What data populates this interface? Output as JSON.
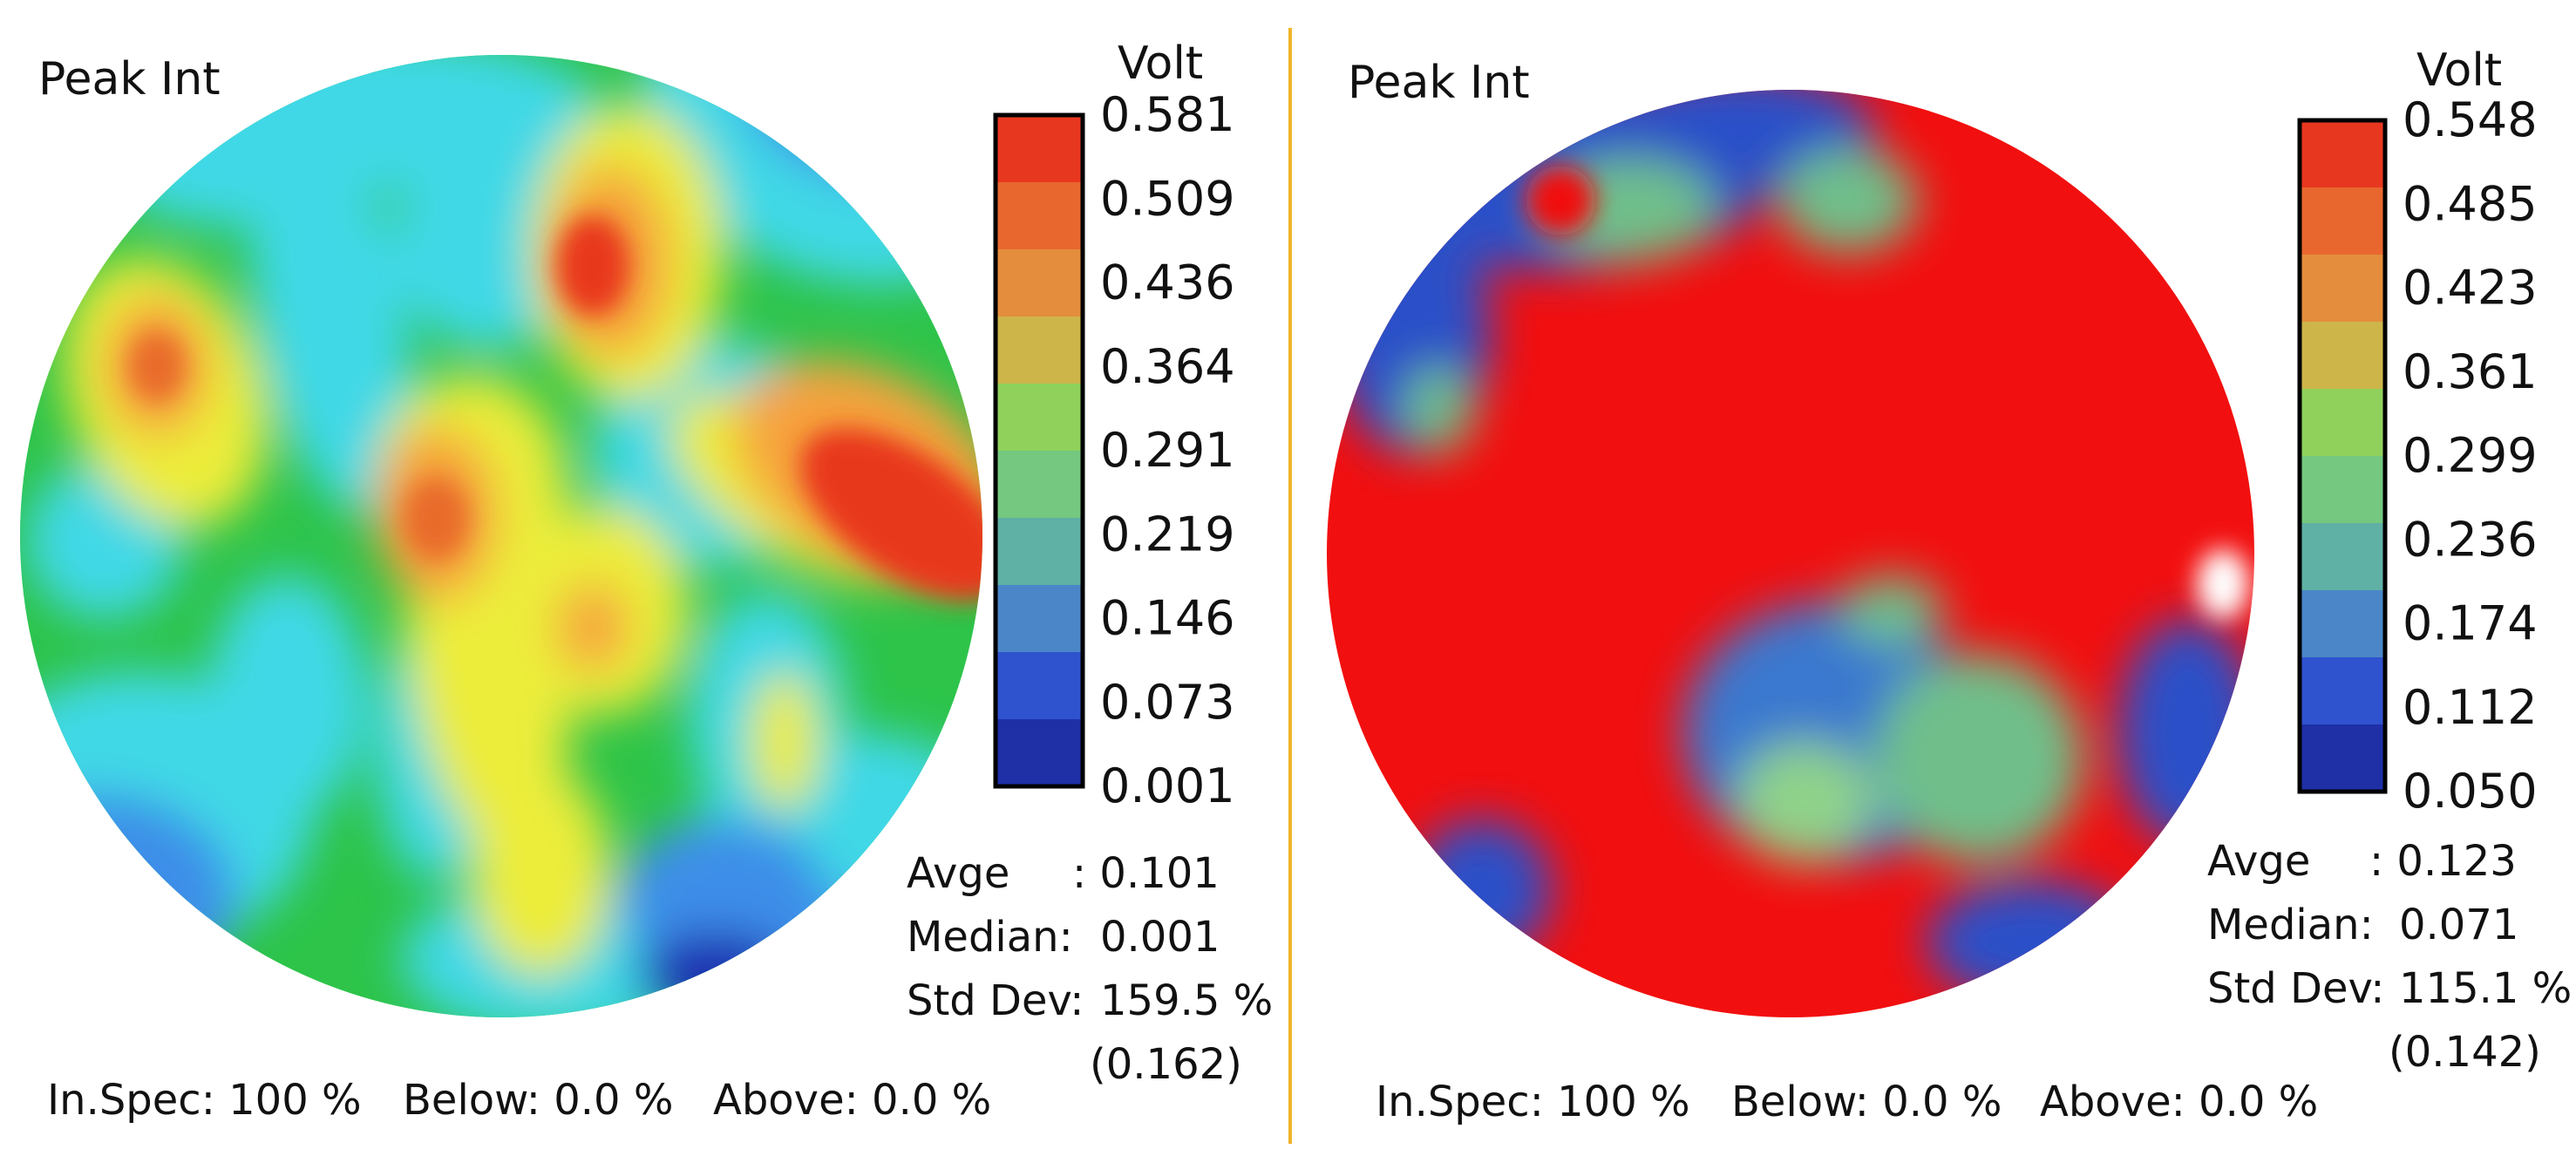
{
  "chart_data": [
    {
      "type": "heatmap",
      "subtype": "wafer-map",
      "title": "Peak Int",
      "colorbar": {
        "unit": "Volt",
        "ticks": [
          "0.581",
          "0.509",
          "0.436",
          "0.364",
          "0.291",
          "0.219",
          "0.146",
          "0.073",
          "0.001"
        ],
        "range": [
          0.001,
          0.581
        ],
        "colors": [
          "#e8371f",
          "#e8672f",
          "#e48d3c",
          "#cdb54a",
          "#8fd15b",
          "#74c87f",
          "#5fb0a5",
          "#4a86c8",
          "#2f52cf",
          "#1f2fa6"
        ]
      },
      "stats": {
        "avge_label": "Avge",
        "avge_value": ": 0.101",
        "median_label": "Median:",
        "median_value": "0.001",
        "stddev_label": "Std Dev:",
        "stddev_value": "159.5 %",
        "stddev_abs": "(0.162)"
      },
      "spec": {
        "inspec": "In.Spec: 100 %",
        "below": "Below: 0.0 %",
        "above": "Above: 0.0 %"
      }
    },
    {
      "type": "heatmap",
      "subtype": "wafer-map",
      "title": "Peak Int",
      "colorbar": {
        "unit": "Volt",
        "ticks": [
          "0.548",
          "0.485",
          "0.423",
          "0.361",
          "0.299",
          "0.236",
          "0.174",
          "0.112",
          "0.050"
        ],
        "range": [
          0.05,
          0.548
        ],
        "colors": [
          "#e8371f",
          "#e8672f",
          "#e48d3c",
          "#cdb54a",
          "#8fd15b",
          "#74c87f",
          "#5fb0a5",
          "#4a86c8",
          "#2f52cf",
          "#1f2fa6"
        ]
      },
      "stats": {
        "avge_label": "Avge",
        "avge_value": ": 0.123",
        "median_label": "Median:",
        "median_value": "0.071",
        "stddev_label": "Std Dev:",
        "stddev_value": "115.1 %",
        "stddev_abs": "(0.142)"
      },
      "spec": {
        "inspec": "In.Spec: 100 %",
        "below": "Below: 0.0 %",
        "above": "Above: 0.0 %"
      }
    }
  ],
  "divider_color": "#f0b429"
}
